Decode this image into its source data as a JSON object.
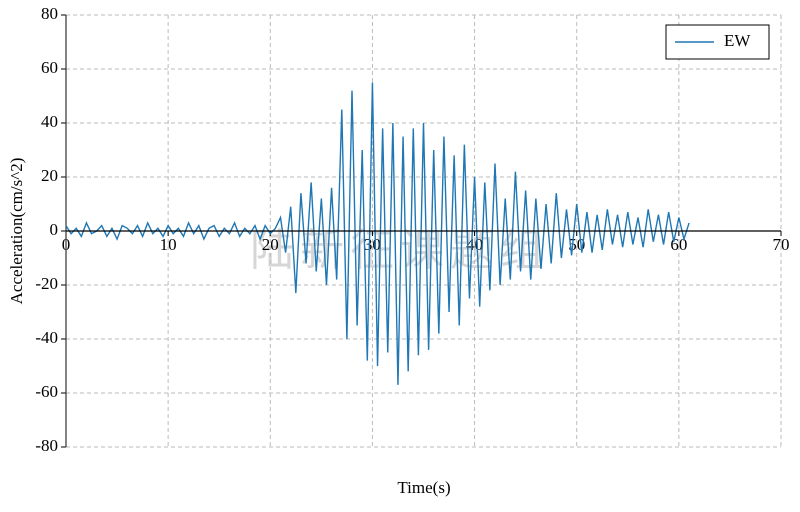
{
  "chart_data": {
    "type": "line",
    "xlabel": "Time(s)",
    "ylabel": "Acceleration(cm/s^2)",
    "watermark": "陆新征课题组",
    "xlim": [
      0,
      70
    ],
    "xticks": [
      0,
      10,
      20,
      30,
      40,
      50,
      60,
      70
    ],
    "ylim": [
      -80,
      80
    ],
    "yticks": [
      -80,
      -60,
      -40,
      -20,
      0,
      20,
      40,
      60,
      80
    ],
    "grid": true,
    "legend": "upper right",
    "x": [
      0,
      0.5,
      1,
      1.5,
      2,
      2.5,
      3,
      3.5,
      4,
      4.5,
      5,
      5.5,
      6,
      6.5,
      7,
      7.5,
      8,
      8.5,
      9,
      9.5,
      10,
      10.5,
      11,
      11.5,
      12,
      12.5,
      13,
      13.5,
      14,
      14.5,
      15,
      15.5,
      16,
      16.5,
      17,
      17.5,
      18,
      18.5,
      19,
      19.5,
      20,
      20.5,
      21,
      21.5,
      22,
      22.5,
      23,
      23.5,
      24,
      24.5,
      25,
      25.5,
      26,
      26.5,
      27,
      27.5,
      28,
      28.5,
      29,
      29.5,
      30,
      30.5,
      31,
      31.5,
      32,
      32.5,
      33,
      33.5,
      34,
      34.5,
      35,
      35.5,
      36,
      36.5,
      37,
      37.5,
      38,
      38.5,
      39,
      39.5,
      40,
      40.5,
      41,
      41.5,
      42,
      42.5,
      43,
      43.5,
      44,
      44.5,
      45,
      45.5,
      46,
      46.5,
      47,
      47.5,
      48,
      48.5,
      49,
      49.5,
      50,
      50.5,
      51,
      51.5,
      52,
      52.5,
      53,
      53.5,
      54,
      54.5,
      55,
      55.5,
      56,
      56.5,
      57,
      57.5,
      58,
      58.5,
      59,
      59.5,
      60,
      60.5,
      61
    ],
    "series": [
      {
        "name": "EW",
        "color": "#1f77b4",
        "values": [
          2,
          -1,
          1,
          -2,
          3,
          -1,
          0,
          2,
          -2,
          1,
          -3,
          2,
          1,
          -1,
          2,
          -2,
          3,
          -1,
          1,
          -2,
          2,
          -1,
          1,
          -2,
          3,
          -1,
          2,
          -3,
          1,
          2,
          -2,
          1,
          -1,
          3,
          -2,
          1,
          -1,
          2,
          -3,
          2,
          -1,
          1,
          5,
          -8,
          9,
          -23,
          14,
          -12,
          18,
          -15,
          12,
          -20,
          16,
          -18,
          45,
          -40,
          52,
          -35,
          30,
          -48,
          55,
          -50,
          38,
          -45,
          40,
          -57,
          35,
          -52,
          38,
          -46,
          40,
          -44,
          30,
          -38,
          35,
          -30,
          28,
          -35,
          32,
          -25,
          20,
          -28,
          18,
          -22,
          25,
          -20,
          12,
          -18,
          22,
          -15,
          15,
          -18,
          12,
          -14,
          10,
          -12,
          14,
          -10,
          8,
          -9,
          10,
          -8,
          7,
          -8,
          6,
          -7,
          8,
          -5,
          6,
          -6,
          7,
          -5,
          5,
          -6,
          8,
          -4,
          6,
          -5,
          7,
          -4,
          5,
          -3,
          3
        ]
      }
    ]
  }
}
